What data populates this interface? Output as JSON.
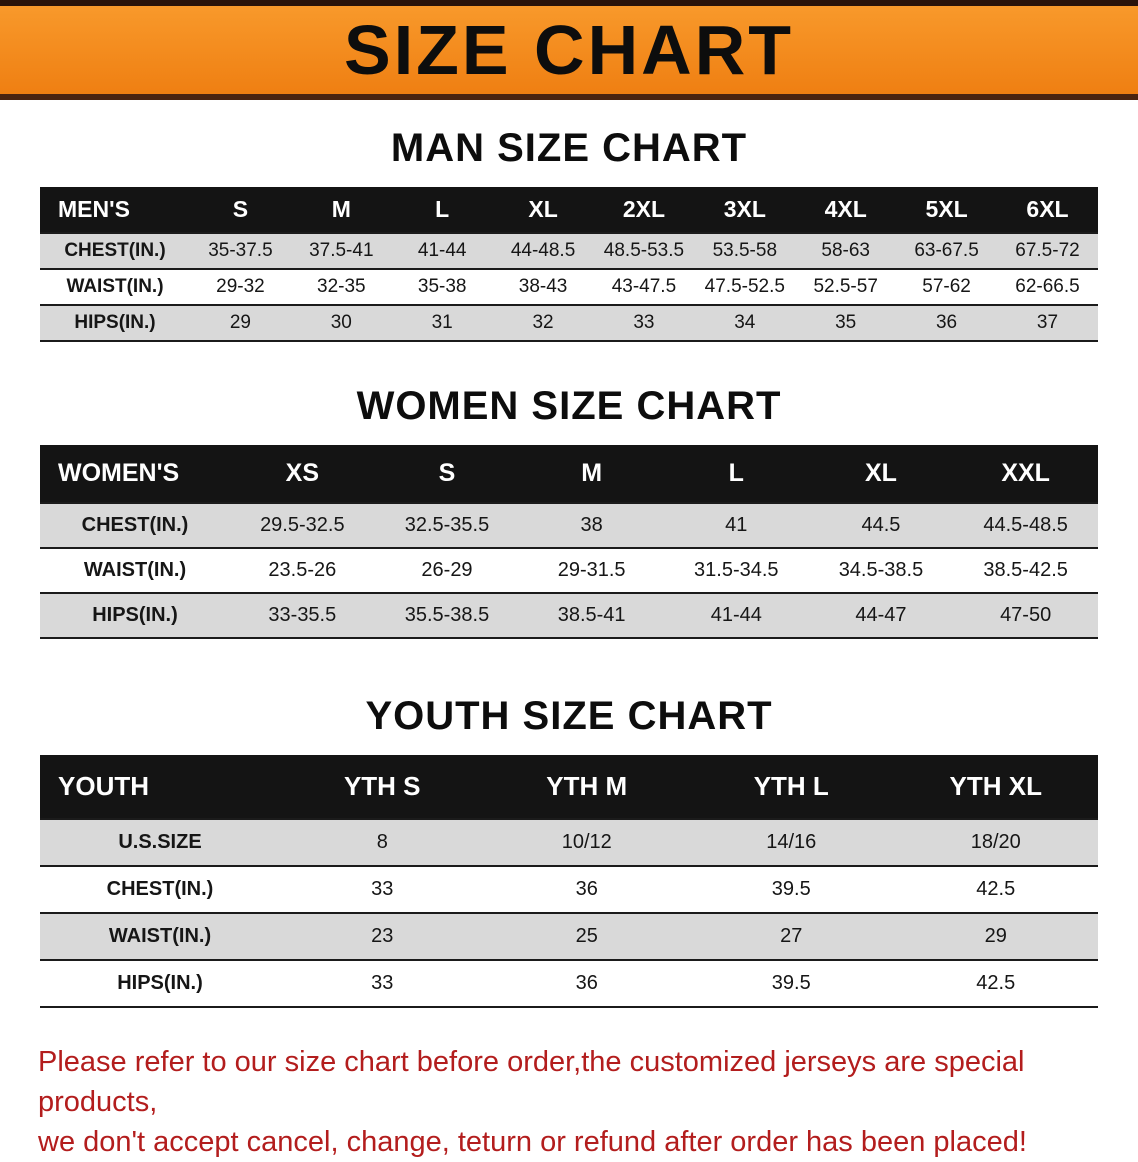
{
  "banner": {
    "title": "SIZE CHART"
  },
  "colors": {
    "banner_bg": "#f58a1f",
    "table_header_bg": "#141414",
    "row_alt_bg": "#d9d9d9",
    "note_color": "#b31d1d"
  },
  "men": {
    "heading": "MAN SIZE CHART",
    "table": {
      "header": [
        "MEN'S",
        "S",
        "M",
        "L",
        "XL",
        "2XL",
        "3XL",
        "4XL",
        "5XL",
        "6XL"
      ],
      "rows": [
        {
          "label": "CHEST(IN.)",
          "values": [
            "35-37.5",
            "37.5-41",
            "41-44",
            "44-48.5",
            "48.5-53.5",
            "53.5-58",
            "58-63",
            "63-67.5",
            "67.5-72"
          ]
        },
        {
          "label": "WAIST(IN.)",
          "values": [
            "29-32",
            "32-35",
            "35-38",
            "38-43",
            "43-47.5",
            "47.5-52.5",
            "52.5-57",
            "57-62",
            "62-66.5"
          ]
        },
        {
          "label": "HIPS(IN.)",
          "values": [
            "29",
            "30",
            "31",
            "32",
            "33",
            "34",
            "35",
            "36",
            "37"
          ]
        }
      ]
    }
  },
  "women": {
    "heading": "WOMEN SIZE CHART",
    "table": {
      "header": [
        "WOMEN'S",
        "XS",
        "S",
        "M",
        "L",
        "XL",
        "XXL"
      ],
      "rows": [
        {
          "label": "CHEST(IN.)",
          "values": [
            "29.5-32.5",
            "32.5-35.5",
            "38",
            "41",
            "44.5",
            "44.5-48.5"
          ]
        },
        {
          "label": "WAIST(IN.)",
          "values": [
            "23.5-26",
            "26-29",
            "29-31.5",
            "31.5-34.5",
            "34.5-38.5",
            "38.5-42.5"
          ]
        },
        {
          "label": "HIPS(IN.)",
          "values": [
            "33-35.5",
            "35.5-38.5",
            "38.5-41",
            "41-44",
            "44-47",
            "47-50"
          ]
        }
      ]
    }
  },
  "youth": {
    "heading": "YOUTH SIZE CHART",
    "table": {
      "header": [
        "YOUTH",
        "YTH S",
        "YTH M",
        "YTH L",
        "YTH XL"
      ],
      "rows": [
        {
          "label": "U.S.SIZE",
          "values": [
            "8",
            "10/12",
            "14/16",
            "18/20"
          ]
        },
        {
          "label": "CHEST(IN.)",
          "values": [
            "33",
            "36",
            "39.5",
            "42.5"
          ]
        },
        {
          "label": "WAIST(IN.)",
          "values": [
            "23",
            "25",
            "27",
            "29"
          ]
        },
        {
          "label": "HIPS(IN.)",
          "values": [
            "33",
            "36",
            "39.5",
            "42.5"
          ]
        }
      ]
    }
  },
  "note": {
    "line1": "Please refer to our size chart before order,the customized jerseys are special products,",
    "line2": "we don't accept cancel, change, teturn or refund after order has been placed!"
  }
}
